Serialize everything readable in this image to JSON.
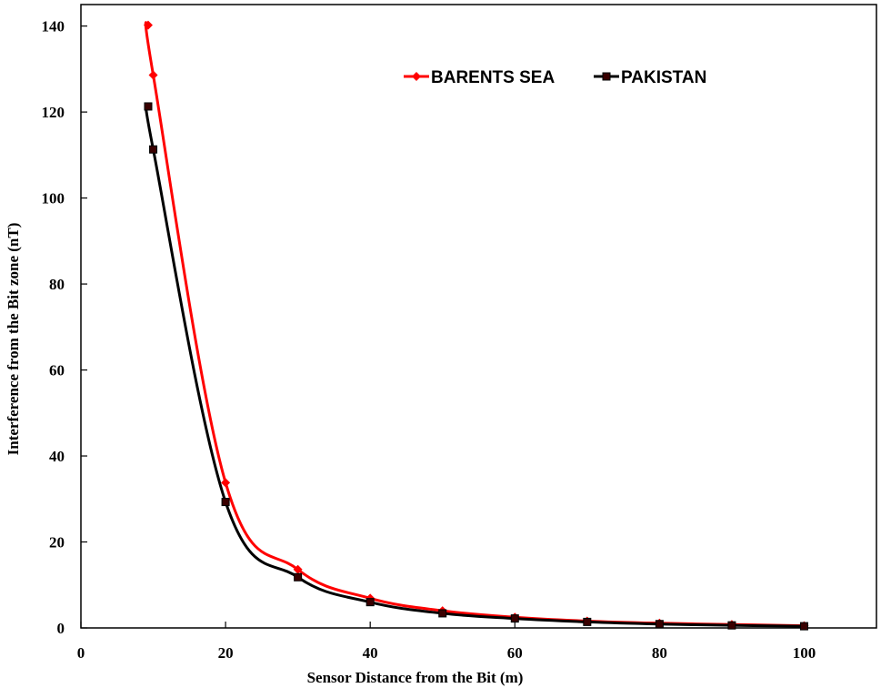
{
  "chart_data": {
    "type": "line",
    "title": "",
    "xlabel": "Sensor Distance from the Bit (m)",
    "ylabel": "Interference from the Bit zone (nT)",
    "xlim": [
      0,
      110
    ],
    "ylim": [
      0,
      145
    ],
    "xticks": [
      0,
      20,
      40,
      60,
      80,
      100
    ],
    "yticks": [
      0,
      20,
      40,
      60,
      80,
      100,
      120,
      140
    ],
    "grid": false,
    "legend_position": "top-right",
    "series": [
      {
        "name": "BARENTS SEA",
        "color": "#ff0000",
        "marker": "diamond",
        "x": [
          9.3,
          10,
          20,
          30,
          40,
          50,
          60,
          70,
          80,
          90,
          100
        ],
        "y": [
          140.2,
          128.6,
          33.8,
          13.6,
          6.9,
          4.0,
          2.5,
          1.6,
          1.1,
          0.8,
          0.5
        ]
      },
      {
        "name": "PAKISTAN",
        "color": "#000000",
        "marker": "square",
        "x": [
          9.3,
          10,
          20,
          30,
          40,
          50,
          60,
          70,
          80,
          90,
          100
        ],
        "y": [
          121.3,
          111.3,
          29.3,
          11.8,
          6.0,
          3.4,
          2.2,
          1.4,
          0.9,
          0.6,
          0.4
        ]
      }
    ]
  }
}
